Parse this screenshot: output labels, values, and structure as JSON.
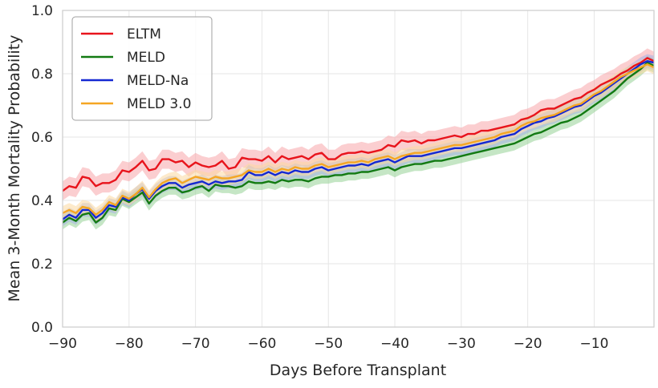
{
  "chart_data": {
    "type": "line",
    "xlabel": "Days Before Transplant",
    "ylabel": "Mean 3-Month Mortality Probability",
    "xlim": [
      -90,
      -1
    ],
    "ylim": [
      0.0,
      1.0
    ],
    "x_ticks": [
      -90,
      -80,
      -70,
      -60,
      -50,
      -40,
      -30,
      -20,
      -10
    ],
    "x_tick_labels": [
      "−90",
      "−80",
      "−70",
      "−60",
      "−50",
      "−40",
      "−30",
      "−20",
      "−10"
    ],
    "y_ticks": [
      0.0,
      0.2,
      0.4,
      0.6,
      0.8,
      1.0
    ],
    "y_tick_labels": [
      "0.0",
      "0.2",
      "0.4",
      "0.6",
      "0.8",
      "1.0"
    ],
    "grid": true,
    "legend_position": "top-left",
    "x": [
      -90,
      -89,
      -88,
      -87,
      -86,
      -85,
      -84,
      -83,
      -82,
      -81,
      -80,
      -79,
      -78,
      -77,
      -76,
      -75,
      -74,
      -73,
      -72,
      -71,
      -70,
      -69,
      -68,
      -67,
      -66,
      -65,
      -64,
      -63,
      -62,
      -61,
      -60,
      -59,
      -58,
      -57,
      -56,
      -55,
      -54,
      -53,
      -52,
      -51,
      -50,
      -49,
      -48,
      -47,
      -46,
      -45,
      -44,
      -43,
      -42,
      -41,
      -40,
      -39,
      -38,
      -37,
      -36,
      -35,
      -34,
      -33,
      -32,
      -31,
      -30,
      -29,
      -28,
      -27,
      -26,
      -25,
      -24,
      -23,
      -22,
      -21,
      -20,
      -19,
      -18,
      -17,
      -16,
      -15,
      -14,
      -13,
      -12,
      -11,
      -10,
      -9,
      -8,
      -7,
      -6,
      -5,
      -4,
      -3,
      -2,
      -1
    ],
    "series": [
      {
        "name": "ELTM",
        "color": "#e8141c",
        "band_color": "#f7a6a9",
        "band": 0.03,
        "values": [
          0.43,
          0.445,
          0.44,
          0.475,
          0.47,
          0.445,
          0.455,
          0.455,
          0.465,
          0.495,
          0.49,
          0.505,
          0.525,
          0.495,
          0.5,
          0.53,
          0.53,
          0.52,
          0.525,
          0.505,
          0.52,
          0.51,
          0.505,
          0.51,
          0.525,
          0.5,
          0.505,
          0.535,
          0.53,
          0.53,
          0.525,
          0.54,
          0.52,
          0.54,
          0.53,
          0.535,
          0.54,
          0.53,
          0.545,
          0.55,
          0.53,
          0.53,
          0.545,
          0.55,
          0.55,
          0.555,
          0.55,
          0.555,
          0.56,
          0.575,
          0.57,
          0.59,
          0.585,
          0.59,
          0.58,
          0.59,
          0.59,
          0.595,
          0.6,
          0.605,
          0.6,
          0.61,
          0.61,
          0.62,
          0.62,
          0.625,
          0.63,
          0.635,
          0.64,
          0.655,
          0.66,
          0.67,
          0.685,
          0.69,
          0.69,
          0.7,
          0.71,
          0.72,
          0.725,
          0.74,
          0.75,
          0.765,
          0.775,
          0.785,
          0.8,
          0.81,
          0.825,
          0.835,
          0.85,
          0.84
        ]
      },
      {
        "name": "MELD",
        "color": "#127a12",
        "band_color": "#96d296",
        "band": 0.022,
        "values": [
          0.33,
          0.345,
          0.335,
          0.355,
          0.36,
          0.33,
          0.345,
          0.375,
          0.37,
          0.405,
          0.395,
          0.41,
          0.425,
          0.39,
          0.415,
          0.43,
          0.44,
          0.44,
          0.425,
          0.43,
          0.44,
          0.445,
          0.43,
          0.45,
          0.445,
          0.445,
          0.44,
          0.445,
          0.46,
          0.455,
          0.455,
          0.46,
          0.455,
          0.465,
          0.46,
          0.465,
          0.465,
          0.46,
          0.47,
          0.475,
          0.475,
          0.48,
          0.48,
          0.485,
          0.485,
          0.49,
          0.49,
          0.495,
          0.5,
          0.505,
          0.495,
          0.505,
          0.51,
          0.515,
          0.515,
          0.52,
          0.525,
          0.525,
          0.53,
          0.535,
          0.54,
          0.545,
          0.55,
          0.555,
          0.56,
          0.565,
          0.57,
          0.575,
          0.58,
          0.59,
          0.6,
          0.61,
          0.615,
          0.625,
          0.635,
          0.645,
          0.65,
          0.66,
          0.67,
          0.685,
          0.7,
          0.715,
          0.73,
          0.745,
          0.765,
          0.785,
          0.8,
          0.815,
          0.835,
          0.825
        ]
      },
      {
        "name": "MELD-Na",
        "color": "#1428d2",
        "band_color": "#a5b0e6",
        "band": 0.022,
        "values": [
          0.34,
          0.355,
          0.345,
          0.37,
          0.37,
          0.345,
          0.36,
          0.385,
          0.38,
          0.41,
          0.4,
          0.42,
          0.435,
          0.405,
          0.43,
          0.445,
          0.455,
          0.455,
          0.44,
          0.45,
          0.455,
          0.46,
          0.45,
          0.46,
          0.455,
          0.46,
          0.46,
          0.465,
          0.49,
          0.48,
          0.48,
          0.49,
          0.48,
          0.49,
          0.485,
          0.495,
          0.49,
          0.49,
          0.5,
          0.505,
          0.495,
          0.5,
          0.505,
          0.51,
          0.51,
          0.515,
          0.51,
          0.52,
          0.525,
          0.53,
          0.52,
          0.53,
          0.54,
          0.54,
          0.54,
          0.545,
          0.55,
          0.555,
          0.56,
          0.565,
          0.565,
          0.57,
          0.575,
          0.58,
          0.585,
          0.59,
          0.6,
          0.605,
          0.61,
          0.625,
          0.635,
          0.645,
          0.65,
          0.66,
          0.665,
          0.675,
          0.685,
          0.695,
          0.7,
          0.715,
          0.73,
          0.74,
          0.755,
          0.77,
          0.785,
          0.8,
          0.815,
          0.83,
          0.84,
          0.835
        ]
      },
      {
        "name": "MELD 3.0",
        "color": "#f5a623",
        "band_color": "#fbd9a0",
        "band": 0.022,
        "values": [
          0.36,
          0.37,
          0.36,
          0.38,
          0.375,
          0.355,
          0.37,
          0.395,
          0.385,
          0.415,
          0.405,
          0.42,
          0.44,
          0.41,
          0.435,
          0.455,
          0.465,
          0.47,
          0.455,
          0.465,
          0.475,
          0.47,
          0.465,
          0.475,
          0.47,
          0.47,
          0.475,
          0.48,
          0.495,
          0.49,
          0.49,
          0.5,
          0.49,
          0.5,
          0.495,
          0.505,
          0.5,
          0.5,
          0.51,
          0.515,
          0.505,
          0.51,
          0.515,
          0.52,
          0.52,
          0.525,
          0.52,
          0.53,
          0.535,
          0.54,
          0.53,
          0.54,
          0.545,
          0.55,
          0.55,
          0.555,
          0.56,
          0.565,
          0.57,
          0.575,
          0.575,
          0.58,
          0.585,
          0.59,
          0.595,
          0.6,
          0.61,
          0.615,
          0.62,
          0.635,
          0.645,
          0.65,
          0.66,
          0.665,
          0.67,
          0.68,
          0.69,
          0.7,
          0.705,
          0.72,
          0.735,
          0.745,
          0.76,
          0.775,
          0.79,
          0.8,
          0.81,
          0.82,
          0.83,
          0.82
        ]
      }
    ]
  }
}
